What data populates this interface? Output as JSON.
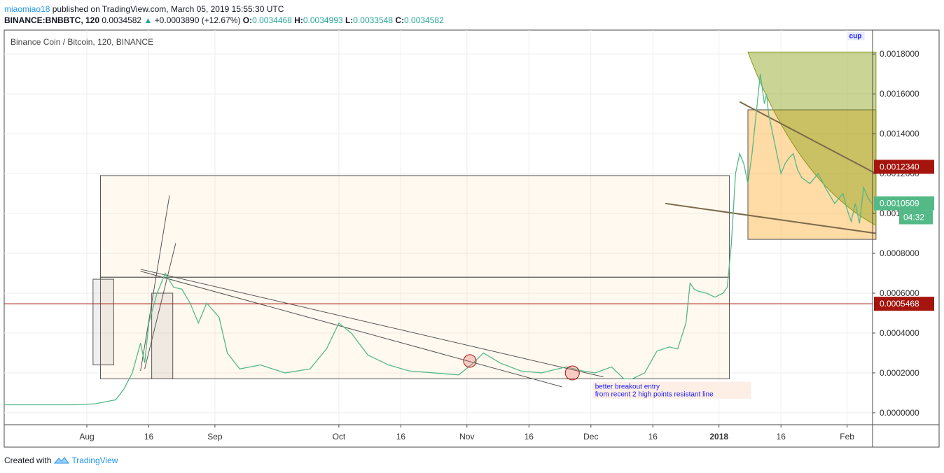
{
  "header": {
    "user": "miaomiao18",
    "published_text": "published on TradingView.com, March 05, 2019 15:55:30 UTC",
    "symbol": "BINANCE:BNBBTC, 120",
    "last": "0.0034582",
    "change": "+0.0003890 (+12.67%)",
    "o_label": "O:",
    "o_value": "0.0034468",
    "h_label": "H:",
    "h_value": "0.0034993",
    "l_label": "L:",
    "l_value": "0.0033548",
    "c_label": "C:",
    "c_value": "0.0034582"
  },
  "footer": {
    "created_with": "Created with",
    "brand": "TradingView"
  },
  "chart_data": {
    "type": "line",
    "title": "Binance Coin / Bitcoin, 120, BINANCE",
    "ylim": [
      -6e-05,
      0.00192
    ],
    "y_ticks": [
      "0.0018000",
      "0.0016000",
      "0.0014000",
      "0.0012000",
      "0.0010000",
      "0.0008000",
      "0.0006000",
      "0.0004000",
      "0.0002000",
      "0.0000000"
    ],
    "y_tick_values": [
      0.0018,
      0.0016,
      0.0014,
      0.0012,
      0.001,
      0.0008,
      0.0006,
      0.0004,
      0.0002,
      0.0
    ],
    "xlim": [
      0,
      200
    ],
    "x_ticks": [
      {
        "label": "Aug",
        "x": 20,
        "bold": false
      },
      {
        "label": "16",
        "x": 35,
        "bold": false
      },
      {
        "label": "Sep",
        "x": 51,
        "bold": false
      },
      {
        "label": "Oct",
        "x": 81,
        "bold": false
      },
      {
        "label": "16",
        "x": 96,
        "bold": false
      },
      {
        "label": "Nov",
        "x": 112,
        "bold": false
      },
      {
        "label": "16",
        "x": 127,
        "bold": false
      },
      {
        "label": "Dec",
        "x": 142,
        "bold": false
      },
      {
        "label": "16",
        "x": 157,
        "bold": false
      },
      {
        "label": "2018",
        "x": 173,
        "bold": true
      },
      {
        "label": "16",
        "x": 188,
        "bold": false
      },
      {
        "label": "Feb",
        "x": 204,
        "bold": false
      }
    ],
    "grid": true,
    "series": [
      {
        "color": "#53b987",
        "x": [
          0,
          12,
          17,
          22,
          27,
          29,
          31,
          33,
          34,
          35,
          37,
          39,
          41,
          43,
          45,
          47,
          49,
          52,
          54,
          57,
          62,
          68,
          74,
          78,
          81,
          84,
          88,
          93,
          98,
          104,
          110,
          113,
          116,
          120,
          125,
          130,
          136,
          140,
          143,
          147,
          150,
          152,
          155,
          158,
          161,
          163,
          165,
          166,
          167,
          168,
          170,
          172,
          174,
          175,
          176,
          177,
          178,
          179,
          180,
          181,
          182,
          183,
          184,
          184.5,
          185,
          186,
          187,
          188,
          189,
          190,
          191,
          192,
          193,
          195,
          197,
          199,
          201,
          203,
          204,
          205,
          206,
          207,
          208,
          209,
          210
        ],
        "values": [
          4e-05,
          4e-05,
          4e-05,
          4.5e-05,
          6.5e-05,
          0.00012,
          0.0002,
          0.00035,
          0.00025,
          0.00045,
          0.0006,
          0.0007,
          0.00063,
          0.00062,
          0.00055,
          0.00045,
          0.00055,
          0.00048,
          0.0003,
          0.00022,
          0.00024,
          0.0002,
          0.00022,
          0.00032,
          0.00045,
          0.0004,
          0.00029,
          0.00024,
          0.00021,
          0.0002,
          0.00019,
          0.00024,
          0.0003,
          0.00025,
          0.00021,
          0.0002,
          0.00023,
          0.00021,
          0.0002,
          0.00023,
          0.00017,
          0.00017,
          0.0002,
          0.00031,
          0.00033,
          0.00032,
          0.00045,
          0.00065,
          0.00062,
          0.00061,
          0.0006,
          0.00058,
          0.0006,
          0.00063,
          0.00085,
          0.0012,
          0.0013,
          0.00125,
          0.00115,
          0.0013,
          0.0015,
          0.0017,
          0.00155,
          0.0016,
          0.0015,
          0.0014,
          0.0013,
          0.0012,
          0.00125,
          0.00128,
          0.0013,
          0.00122,
          0.00118,
          0.00115,
          0.0012,
          0.00112,
          0.00105,
          0.0011,
          0.00102,
          0.00096,
          0.00105,
          0.00095,
          0.00113,
          0.00108,
          0.00105
        ]
      }
    ],
    "price_labels": [
      {
        "value": 0.001234,
        "text": "0.0012340",
        "color": "#a5150d"
      },
      {
        "value": 0.0010509,
        "text": "0.0010509",
        "color": "#53b987"
      },
      {
        "value": 0.0005468,
        "text": "0.0005468",
        "color": "#a5150d"
      }
    ],
    "countdown": "04:32",
    "horizontal_line": 0.0005468,
    "annotations": [
      {
        "text": "better breakout entry",
        "x": 143,
        "y": 0.00012
      },
      {
        "text": "from recent 2 high points resistant line",
        "x": 143,
        "y": 8e-05
      },
      {
        "text": "cup",
        "x": 204.5,
        "y": 0.00188
      }
    ]
  }
}
